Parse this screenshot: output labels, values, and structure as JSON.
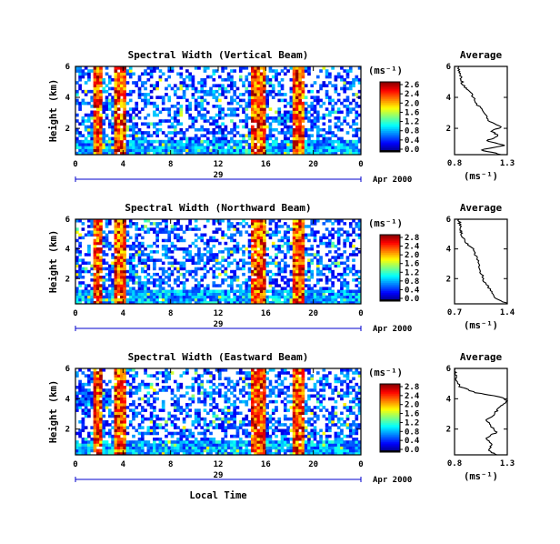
{
  "chart_data": [
    {
      "type": "heatmap",
      "title": "Spectral Width (Vertical Beam)",
      "ylabel": "Height (km)",
      "xticks": [
        "0",
        "4",
        "8",
        "12",
        "16",
        "20",
        "0"
      ],
      "xlim": [
        0,
        24
      ],
      "yticks": [
        "6",
        "4",
        "2"
      ],
      "ylim": [
        0.3,
        6
      ],
      "date_label": "29",
      "month_year": "Apr 2000",
      "colorbar": {
        "unit": "(ms⁻¹)",
        "ticks": [
          "2.6",
          "2.4",
          "2.0",
          "1.6",
          "1.2",
          "0.8",
          "0.4",
          "0.0"
        ]
      },
      "high_width_bands_local_time": [
        [
          1.7,
          2.1
        ],
        [
          3.4,
          4.0
        ],
        [
          14.8,
          15.9
        ],
        [
          18.5,
          19.0
        ]
      ],
      "average_profile": {
        "title": "Average",
        "xlabel": "(ms⁻¹)",
        "xticks": [
          "0.8",
          "1.3"
        ],
        "xlim": [
          0.8,
          1.3
        ],
        "yticks": [
          "6",
          "4",
          "2"
        ],
        "ylim": [
          0.3,
          6
        ],
        "height_km": [
          0.3,
          0.6,
          0.9,
          1.2,
          1.5,
          1.8,
          2.1,
          2.5,
          3.0,
          3.5,
          4.0,
          4.5,
          4.8,
          5.2,
          5.6,
          6.0
        ],
        "width_ms": [
          1.25,
          1.05,
          1.28,
          1.1,
          1.22,
          1.15,
          1.24,
          1.12,
          1.08,
          1.02,
          0.98,
          0.93,
          0.88,
          0.86,
          0.85,
          0.84
        ]
      }
    },
    {
      "type": "heatmap",
      "title": "Spectral Width (Northward Beam)",
      "ylabel": "Height (km)",
      "xticks": [
        "0",
        "4",
        "8",
        "12",
        "16",
        "20",
        "0"
      ],
      "xlim": [
        0,
        24
      ],
      "yticks": [
        "6",
        "4",
        "2"
      ],
      "ylim": [
        0.3,
        6
      ],
      "date_label": "29",
      "month_year": "Apr 2000",
      "colorbar": {
        "unit": "(ms⁻¹)",
        "ticks": [
          "2.8",
          "2.4",
          "2.0",
          "1.6",
          "1.2",
          "0.8",
          "0.4",
          "0.0"
        ]
      },
      "high_width_bands_local_time": [
        [
          1.7,
          2.1
        ],
        [
          3.4,
          4.0
        ],
        [
          14.8,
          15.9
        ],
        [
          18.5,
          19.0
        ]
      ],
      "average_profile": {
        "title": "Average",
        "xlabel": "(ms⁻¹)",
        "xticks": [
          "0.7",
          "1.4"
        ],
        "xlim": [
          0.7,
          1.4
        ],
        "yticks": [
          "6",
          "4",
          "2"
        ],
        "ylim": [
          0.3,
          6
        ],
        "height_km": [
          0.3,
          0.7,
          1.2,
          1.8,
          2.4,
          3.0,
          3.6,
          4.0,
          4.4,
          4.8,
          5.2,
          5.6,
          6.0
        ],
        "width_ms": [
          1.4,
          1.25,
          1.18,
          1.1,
          1.05,
          1.02,
          0.98,
          0.95,
          0.85,
          0.8,
          0.78,
          0.77,
          0.76
        ]
      }
    },
    {
      "type": "heatmap",
      "title": "Spectral Width (Eastward Beam)",
      "ylabel": "Height (km)",
      "xlabel": "Local Time",
      "xticks": [
        "0",
        "4",
        "8",
        "12",
        "16",
        "20",
        "0"
      ],
      "xlim": [
        0,
        24
      ],
      "yticks": [
        "6",
        "4",
        "2"
      ],
      "ylim": [
        0.3,
        6
      ],
      "date_label": "29",
      "month_year": "Apr 2000",
      "colorbar": {
        "unit": "(ms⁻¹)",
        "ticks": [
          "2.8",
          "2.4",
          "2.0",
          "1.6",
          "1.2",
          "0.8",
          "0.4",
          "0.0"
        ]
      },
      "high_width_bands_local_time": [
        [
          1.7,
          2.1
        ],
        [
          3.4,
          4.0
        ],
        [
          14.8,
          15.9
        ],
        [
          18.5,
          19.0
        ]
      ],
      "average_profile": {
        "title": "Average",
        "xlabel": "(ms⁻¹)",
        "xticks": [
          "0.8",
          "1.3"
        ],
        "xlim": [
          0.8,
          1.3
        ],
        "yticks": [
          "6",
          "4",
          "2"
        ],
        "ylim": [
          0.3,
          6
        ],
        "height_km": [
          0.3,
          0.6,
          1.0,
          1.4,
          1.8,
          2.2,
          2.6,
          3.0,
          3.4,
          3.8,
          4.1,
          4.4,
          4.8,
          5.2,
          5.6,
          6.0
        ],
        "width_ms": [
          1.2,
          1.12,
          1.16,
          1.1,
          1.2,
          1.14,
          1.1,
          1.18,
          1.22,
          1.3,
          1.25,
          1.0,
          0.85,
          0.82,
          0.81,
          0.8
        ]
      }
    }
  ]
}
